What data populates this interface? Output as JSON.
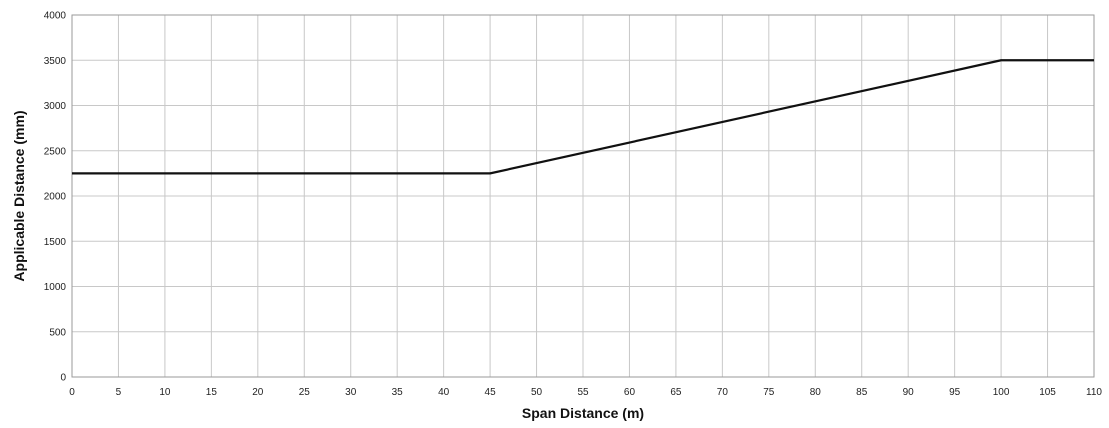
{
  "chart_data": {
    "type": "line",
    "xlabel": "Span Distance (m)",
    "ylabel": "Applicable Distance (mm)",
    "xlim": [
      0,
      110
    ],
    "ylim": [
      0,
      4000
    ],
    "x_ticks": [
      "0",
      "5",
      "10",
      "15",
      "20",
      "25",
      "30",
      "35",
      "40",
      "45",
      "50",
      "55",
      "60",
      "65",
      "70",
      "75",
      "80",
      "85",
      "90",
      "95",
      "100",
      "105",
      "110"
    ],
    "y_ticks": [
      "0",
      "500",
      "1000",
      "1500",
      "2000",
      "2500",
      "3000",
      "3500",
      "4000"
    ],
    "grid": true,
    "legend": "none",
    "series": [
      {
        "color": "#111111",
        "points": [
          [
            0,
            2250
          ],
          [
            45,
            2250
          ],
          [
            100,
            3500
          ],
          [
            110,
            3500
          ]
        ]
      }
    ]
  }
}
